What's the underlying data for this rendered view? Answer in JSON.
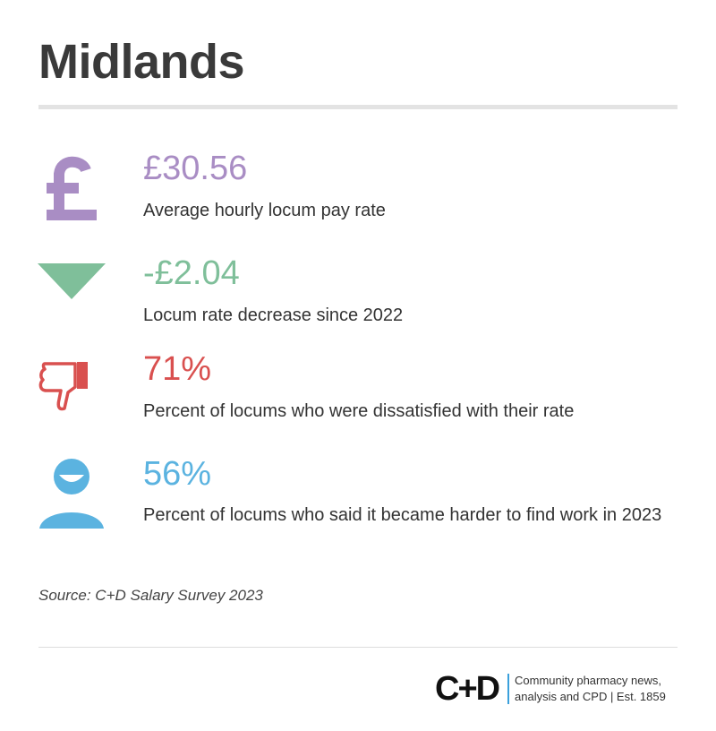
{
  "header": {
    "title": "Midlands"
  },
  "stats": [
    {
      "value": "£30.56",
      "label": "Average hourly locum pay rate"
    },
    {
      "value": "-£2.04",
      "label": "Locum rate decrease since 2022"
    },
    {
      "value": "71%",
      "label": "Percent of locums who were dissatisfied with their rate"
    },
    {
      "value": "56%",
      "label": "Percent of locums who said it became harder to find work in 2023"
    }
  ],
  "source": "Source: C+D Salary Survey 2023",
  "footer": {
    "logo": "C+D",
    "tagline": [
      "Community pharmacy news,",
      "analysis and CPD | Est. 1859"
    ]
  }
}
